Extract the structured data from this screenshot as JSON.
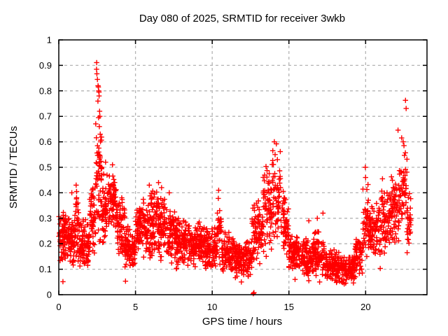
{
  "chart_data": {
    "type": "scatter",
    "title": "Day 080 of 2025, SRMTID for receiver 3wkb",
    "xlabel": "GPS time / hours",
    "ylabel": "SRMTID / TECUs",
    "xlim": [
      0,
      24
    ],
    "ylim": [
      0,
      1
    ],
    "xticks": [
      0,
      5,
      10,
      15,
      20
    ],
    "xtick_labels": [
      "0",
      "5",
      "10",
      "15",
      "20"
    ],
    "yticks": [
      0,
      0.1,
      0.2,
      0.3,
      0.4,
      0.5,
      0.6,
      0.7,
      0.8,
      0.9,
      1
    ],
    "ytick_labels": [
      "0",
      "0.1",
      "0.2",
      "0.3",
      "0.4",
      "0.5",
      "0.6",
      "0.7",
      "0.8",
      "0.9",
      "1"
    ],
    "grid": true,
    "legend": "none",
    "colors": {
      "marker": "#ff0000",
      "grid": "#b4b4b4",
      "border": "#000000",
      "background": "#ffffff"
    },
    "marker": {
      "symbol": "plus",
      "size": 7.5,
      "stroke_width": 1.4
    },
    "point_bins_format": "[t_start_hours, t_end_hours, count, y_min_TECUs, y_max_TECUs]",
    "point_bins": [
      [
        0.0,
        0.5,
        70,
        0.12,
        0.33
      ],
      [
        0.5,
        1.0,
        70,
        0.11,
        0.31
      ],
      [
        1.0,
        1.3,
        40,
        0.1,
        0.4
      ],
      [
        1.3,
        2.0,
        90,
        0.1,
        0.3
      ],
      [
        2.0,
        2.4,
        50,
        0.12,
        0.46
      ],
      [
        2.4,
        2.8,
        55,
        0.18,
        0.75
      ],
      [
        2.8,
        3.2,
        50,
        0.18,
        0.5
      ],
      [
        3.2,
        3.8,
        75,
        0.24,
        0.51
      ],
      [
        3.8,
        4.3,
        60,
        0.12,
        0.44
      ],
      [
        4.3,
        5.0,
        85,
        0.1,
        0.27
      ],
      [
        5.0,
        5.5,
        60,
        0.14,
        0.37
      ],
      [
        5.5,
        6.2,
        85,
        0.14,
        0.42
      ],
      [
        6.2,
        7.0,
        100,
        0.13,
        0.43
      ],
      [
        7.0,
        7.6,
        70,
        0.12,
        0.36
      ],
      [
        7.6,
        8.5,
        110,
        0.1,
        0.31
      ],
      [
        8.5,
        9.5,
        120,
        0.1,
        0.3
      ],
      [
        9.5,
        10.3,
        95,
        0.09,
        0.27
      ],
      [
        10.3,
        10.6,
        30,
        0.1,
        0.38
      ],
      [
        10.6,
        11.5,
        105,
        0.08,
        0.26
      ],
      [
        11.5,
        12.6,
        130,
        0.06,
        0.22
      ],
      [
        12.6,
        13.3,
        75,
        0.1,
        0.4
      ],
      [
        13.3,
        13.9,
        65,
        0.14,
        0.53
      ],
      [
        13.9,
        14.5,
        55,
        0.18,
        0.58
      ],
      [
        14.5,
        15.0,
        55,
        0.12,
        0.42
      ],
      [
        15.0,
        15.8,
        90,
        0.08,
        0.24
      ],
      [
        15.8,
        16.5,
        80,
        0.07,
        0.23
      ],
      [
        16.5,
        17.3,
        90,
        0.06,
        0.26
      ],
      [
        17.3,
        18.3,
        110,
        0.05,
        0.18
      ],
      [
        18.3,
        19.3,
        110,
        0.04,
        0.16
      ],
      [
        19.3,
        19.8,
        55,
        0.06,
        0.24
      ],
      [
        19.8,
        20.2,
        40,
        0.1,
        0.44
      ],
      [
        20.2,
        21.0,
        85,
        0.13,
        0.38
      ],
      [
        21.0,
        21.6,
        65,
        0.15,
        0.44
      ],
      [
        21.6,
        22.2,
        65,
        0.18,
        0.5
      ],
      [
        22.2,
        22.7,
        50,
        0.24,
        0.6
      ],
      [
        22.7,
        22.95,
        28,
        0.15,
        0.4
      ]
    ],
    "outlier_points": [
      [
        2.46,
        0.885
      ],
      [
        2.47,
        0.911
      ],
      [
        2.48,
        0.867
      ],
      [
        2.52,
        0.845
      ],
      [
        2.56,
        0.82
      ],
      [
        2.58,
        0.815
      ],
      [
        2.6,
        0.8
      ],
      [
        2.62,
        0.795
      ],
      [
        2.63,
        0.78
      ],
      [
        2.55,
        0.76
      ],
      [
        2.66,
        0.72
      ],
      [
        2.68,
        0.7
      ],
      [
        2.64,
        0.66
      ],
      [
        2.7,
        0.63
      ],
      [
        2.72,
        0.6
      ],
      [
        2.6,
        0.56
      ],
      [
        2.66,
        0.52
      ],
      [
        3.05,
        0.52
      ],
      [
        3.5,
        0.51
      ],
      [
        13.95,
        0.565
      ],
      [
        14.05,
        0.6
      ],
      [
        14.18,
        0.592
      ],
      [
        14.1,
        0.55
      ],
      [
        14.25,
        0.53
      ],
      [
        22.6,
        0.763
      ],
      [
        22.64,
        0.731
      ],
      [
        22.11,
        0.646
      ],
      [
        22.35,
        0.615
      ],
      [
        22.45,
        0.6
      ],
      [
        22.5,
        0.585
      ],
      [
        12.68,
        0.004
      ],
      [
        12.72,
        0.008
      ],
      [
        0.27,
        0.051
      ],
      [
        4.35,
        0.053
      ],
      [
        11.9,
        0.05
      ],
      [
        15.4,
        0.06
      ],
      [
        16.3,
        0.055
      ],
      [
        17.0,
        0.05
      ],
      [
        18.1,
        0.048
      ],
      [
        18.6,
        0.042
      ],
      [
        1.13,
        0.43
      ],
      [
        1.16,
        0.405
      ],
      [
        0.85,
        0.4
      ],
      [
        5.9,
        0.43
      ],
      [
        6.5,
        0.44
      ],
      [
        6.7,
        0.42
      ],
      [
        7.2,
        0.4
      ],
      [
        10.4,
        0.378
      ],
      [
        10.42,
        0.41
      ],
      [
        16.3,
        0.29
      ],
      [
        16.85,
        0.3
      ],
      [
        17.22,
        0.32
      ],
      [
        19.98,
        0.5
      ],
      [
        20.0,
        0.46
      ],
      [
        20.95,
        0.103
      ],
      [
        21.1,
        0.455
      ]
    ]
  }
}
